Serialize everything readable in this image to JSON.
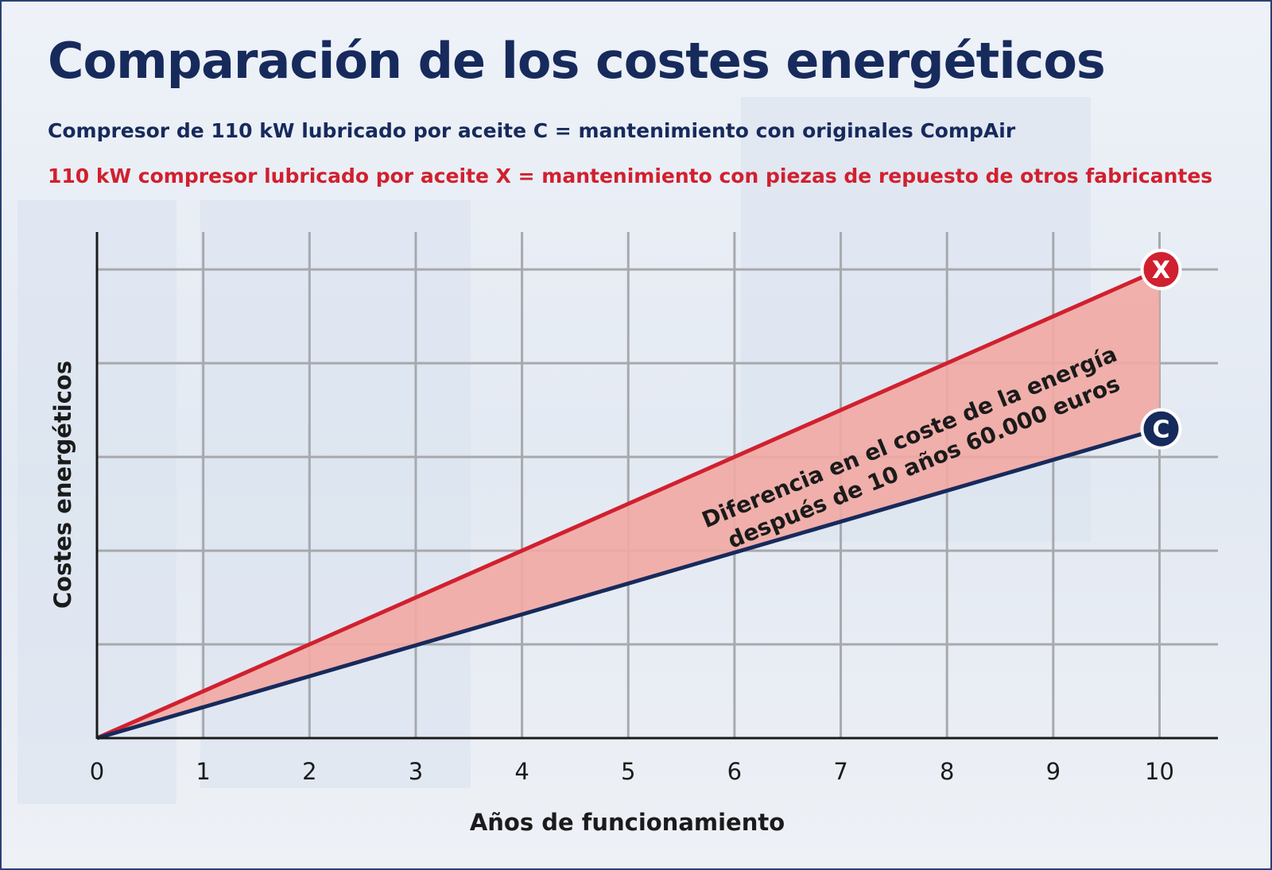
{
  "title": "Comparación de los costes energéticos",
  "subtitle_c": "Compresor de 110 kW lubricado por aceite C = mantenimiento con originales CompAir",
  "subtitle_x": "110 kW compresor lubricado por aceite X = mantenimiento con piezas de repuesto de otros fabricantes",
  "annotation_line1": "Diferencia en el coste de la energía",
  "annotation_line2": "después de 10 años 60.000 euros",
  "colors": {
    "c_series": "#172a5c",
    "x_series": "#d1202f",
    "fill": "#f2a9a3",
    "grid": "#a7a9ad"
  },
  "chart_data": {
    "type": "line",
    "xlabel": "Años de funcionamiento",
    "ylabel": "Costes energéticos",
    "x_ticks": [
      "0",
      "1",
      "2",
      "3",
      "4",
      "5",
      "6",
      "7",
      "8",
      "9",
      "10"
    ],
    "xlim": [
      0,
      10.55
    ],
    "ylim": [
      0,
      5.4
    ],
    "y_gridlines": [
      1,
      2,
      3,
      4,
      5
    ],
    "grid": true,
    "series": [
      {
        "name": "X",
        "x": [
          0,
          10
        ],
        "y": [
          0,
          5.0
        ]
      },
      {
        "name": "C",
        "x": [
          0,
          10
        ],
        "y": [
          0,
          3.3
        ]
      }
    ],
    "fill_between": [
      "X",
      "C"
    ]
  }
}
